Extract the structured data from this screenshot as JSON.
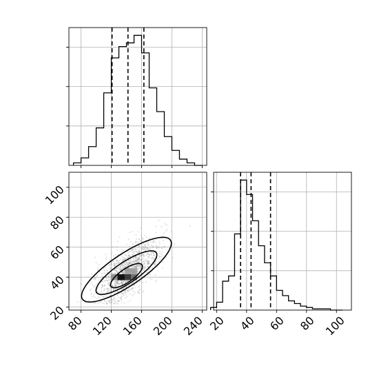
{
  "chart_data": [
    {
      "type": "histogram",
      "panel": "marginal-x",
      "bin_edges": [
        70,
        80,
        90,
        100,
        110,
        120,
        130,
        140,
        150,
        160,
        170,
        180,
        190,
        200,
        210,
        220,
        230,
        240
      ],
      "counts": [
        2,
        6,
        15,
        30,
        58,
        86,
        95,
        98,
        104,
        90,
        62,
        43,
        23,
        12,
        5,
        2,
        0
      ],
      "ymax": 104,
      "quantile_lines": [
        121,
        142,
        163
      ],
      "xlim": [
        64,
        246
      ],
      "xticks": [
        80,
        120,
        160,
        200,
        240
      ],
      "grid": true,
      "tick_labels_shown": false
    },
    {
      "type": "heatmap",
      "panel": "joint",
      "x_param_ticks": [
        80,
        120,
        160,
        200,
        240
      ],
      "y_param_ticks": [
        20,
        40,
        60,
        80,
        100
      ],
      "xlim": [
        64,
        246
      ],
      "ylim": [
        18,
        110
      ],
      "contour_levels": 3,
      "density_peak": {
        "x": 135,
        "y": 40
      },
      "grid": true,
      "points_color": "#808080"
    },
    {
      "type": "histogram",
      "panel": "marginal-y",
      "bin_edges": [
        16,
        20,
        24,
        28,
        32,
        36,
        40,
        44,
        48,
        52,
        56,
        60,
        64,
        68,
        72,
        76,
        80,
        84,
        88,
        92,
        96,
        100,
        104
      ],
      "counts": [
        2,
        6,
        22,
        26,
        58,
        99,
        88,
        68,
        49,
        36,
        26,
        15,
        11,
        7,
        5,
        3,
        2,
        1,
        1,
        1,
        0,
        0
      ],
      "ymax": 99,
      "quantile_lines": [
        36,
        43,
        56
      ],
      "xlim": [
        18,
        110
      ],
      "xticks": [
        20,
        40,
        60,
        80,
        100
      ],
      "grid": true
    }
  ],
  "axes": {
    "joint_x_tick_labels": [
      "80",
      "120",
      "160",
      "200",
      "240"
    ],
    "joint_y_tick_labels": [
      "20",
      "40",
      "60",
      "80",
      "100"
    ],
    "marginal_y_tick_labels": [
      "20",
      "40",
      "60",
      "80",
      "100"
    ]
  },
  "colors": {
    "line": "#000000",
    "grid": "#b0b0b0",
    "scatter": "#808080"
  }
}
